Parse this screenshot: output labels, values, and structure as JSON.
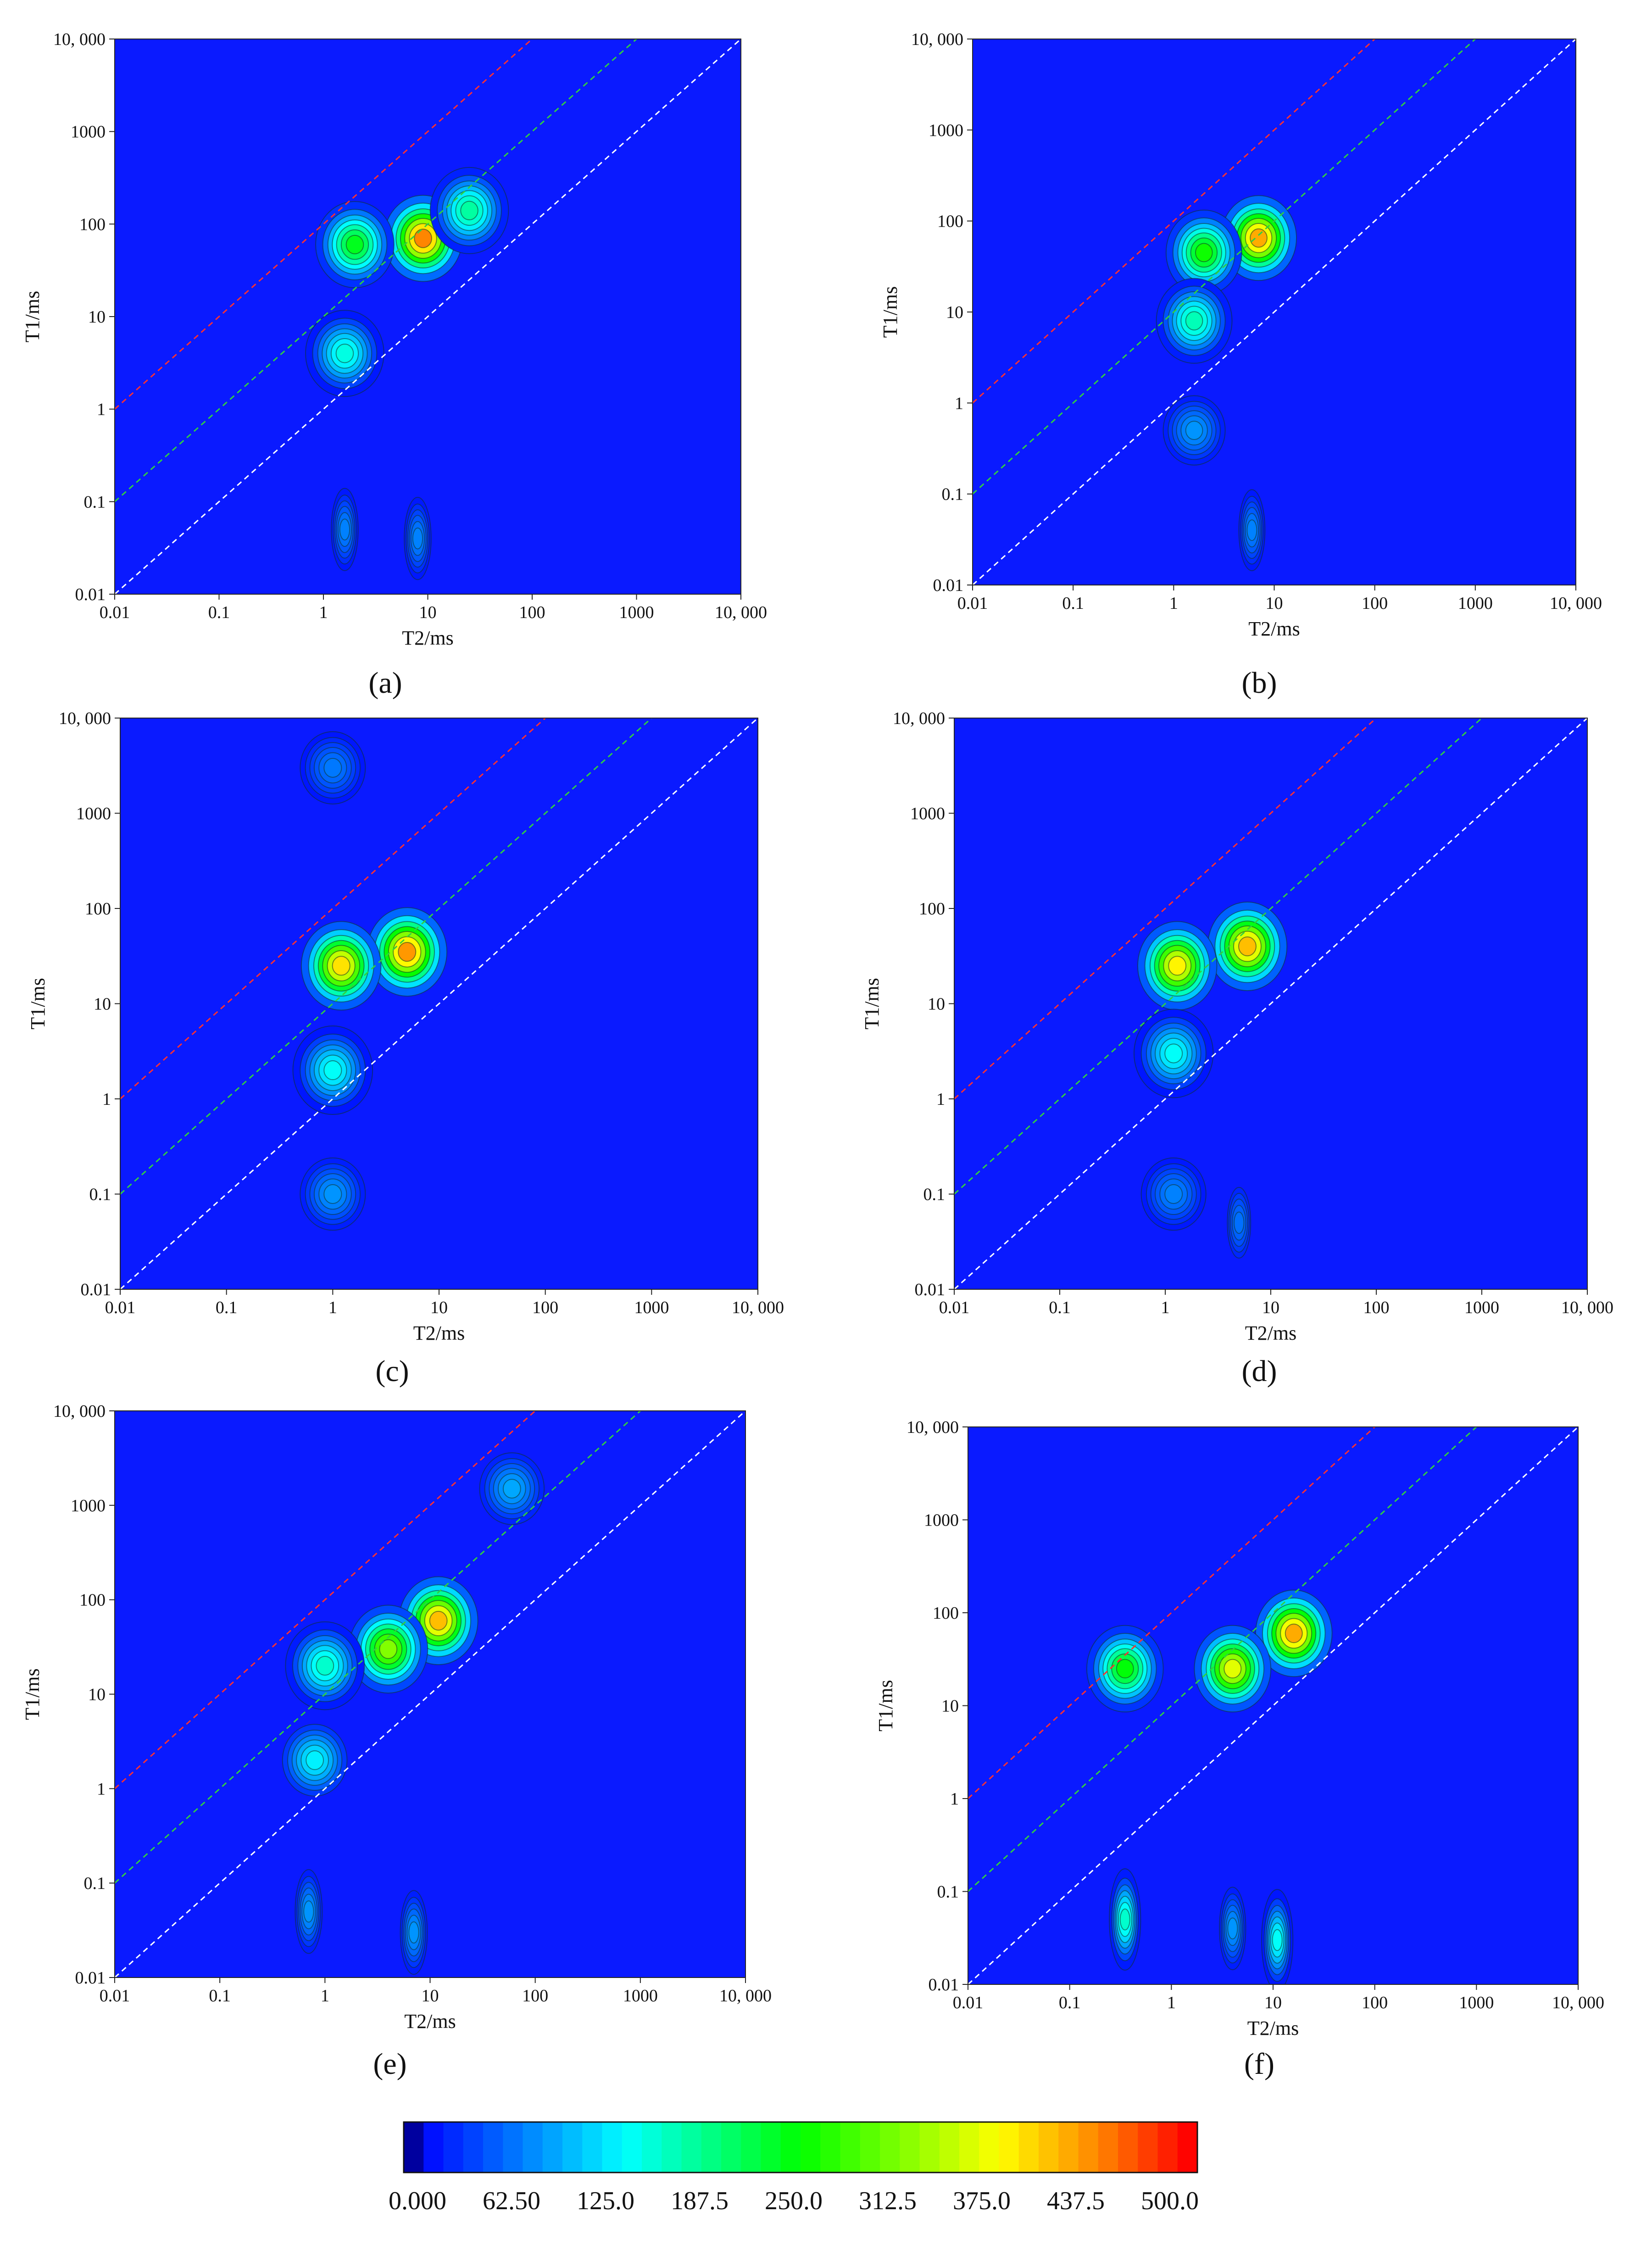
{
  "chart_data": [
    {
      "type": "heatmap",
      "panel_label": "(a)",
      "xlabel": "T2/ms",
      "ylabel": "T1/ms",
      "xscale": "log",
      "yscale": "log",
      "xlim": [
        0.01,
        10000
      ],
      "ylim": [
        0.01,
        10000
      ],
      "x_ticks": [
        "0.01",
        "0.1",
        "1",
        "10",
        "100",
        "1000",
        "10, 000"
      ],
      "y_ticks": [
        "0.01",
        "0.1",
        "1",
        "10",
        "100",
        "1000",
        "10, 000"
      ],
      "reference_lines": [
        {
          "t1_t2_ratio": 100,
          "color": "#ff3030"
        },
        {
          "t1_t2_ratio": 10,
          "color": "#30d040"
        },
        {
          "t1_t2_ratio": 1,
          "color": "#ffffff"
        }
      ],
      "peaks": [
        {
          "t2": 9,
          "t1": 70,
          "amplitude": 460
        },
        {
          "t2": 2,
          "t1": 60,
          "amplitude": 250
        },
        {
          "t2": 1.6,
          "t1": 4,
          "amplitude": 160
        },
        {
          "t2": 25,
          "t1": 140,
          "amplitude": 190
        },
        {
          "t2": 1.6,
          "t1": 0.05,
          "amplitude": 80
        },
        {
          "t2": 8,
          "t1": 0.04,
          "amplitude": 80
        }
      ]
    },
    {
      "type": "heatmap",
      "panel_label": "(b)",
      "xlabel": "T2/ms",
      "ylabel": "T1/ms",
      "xscale": "log",
      "yscale": "log",
      "xlim": [
        0.01,
        10000
      ],
      "ylim": [
        0.01,
        10000
      ],
      "x_ticks": [
        "0.01",
        "0.1",
        "1",
        "10",
        "100",
        "1000",
        "10, 000"
      ],
      "y_ticks": [
        "0.01",
        "0.1",
        "1",
        "10",
        "100",
        "1000",
        "10, 000"
      ],
      "reference_lines": [
        {
          "t1_t2_ratio": 100,
          "color": "#ff3030"
        },
        {
          "t1_t2_ratio": 10,
          "color": "#30d040"
        },
        {
          "t1_t2_ratio": 1,
          "color": "#ffffff"
        }
      ],
      "peaks": [
        {
          "t2": 7,
          "t1": 65,
          "amplitude": 440
        },
        {
          "t2": 2,
          "t1": 45,
          "amplitude": 270
        },
        {
          "t2": 1.6,
          "t1": 8,
          "amplitude": 180
        },
        {
          "t2": 1.6,
          "t1": 0.5,
          "amplitude": 90
        },
        {
          "t2": 6,
          "t1": 0.04,
          "amplitude": 80
        }
      ]
    },
    {
      "type": "heatmap",
      "panel_label": "(c)",
      "xlabel": "T2/ms",
      "ylabel": "T1/ms",
      "xscale": "log",
      "yscale": "log",
      "xlim": [
        0.01,
        10000
      ],
      "ylim": [
        0.01,
        10000
      ],
      "x_ticks": [
        "0.01",
        "0.1",
        "1",
        "10",
        "100",
        "1000",
        "10, 000"
      ],
      "y_ticks": [
        "0.01",
        "0.1",
        "1",
        "10",
        "100",
        "1000",
        "10, 000"
      ],
      "reference_lines": [
        {
          "t1_t2_ratio": 100,
          "color": "#ff3030"
        },
        {
          "t1_t2_ratio": 10,
          "color": "#30d040"
        },
        {
          "t1_t2_ratio": 1,
          "color": "#ffffff"
        }
      ],
      "peaks": [
        {
          "t2": 5,
          "t1": 35,
          "amplitude": 450
        },
        {
          "t2": 1.2,
          "t1": 25,
          "amplitude": 410
        },
        {
          "t2": 1,
          "t1": 2,
          "amplitude": 150
        },
        {
          "t2": 1,
          "t1": 0.1,
          "amplitude": 90
        },
        {
          "t2": 1,
          "t1": 3000,
          "amplitude": 75
        }
      ]
    },
    {
      "type": "heatmap",
      "panel_label": "(d)",
      "xlabel": "T2/ms",
      "ylabel": "T1/ms",
      "xscale": "log",
      "yscale": "log",
      "xlim": [
        0.01,
        10000
      ],
      "ylim": [
        0.01,
        10000
      ],
      "x_ticks": [
        "0.01",
        "0.1",
        "1",
        "10",
        "100",
        "1000",
        "10, 000"
      ],
      "y_ticks": [
        "0.01",
        "0.1",
        "1",
        "10",
        "100",
        "1000",
        "10, 000"
      ],
      "reference_lines": [
        {
          "t1_t2_ratio": 100,
          "color": "#ff3030"
        },
        {
          "t1_t2_ratio": 10,
          "color": "#30d040"
        },
        {
          "t1_t2_ratio": 1,
          "color": "#ffffff"
        }
      ],
      "peaks": [
        {
          "t2": 6,
          "t1": 40,
          "amplitude": 430
        },
        {
          "t2": 1.3,
          "t1": 25,
          "amplitude": 400
        },
        {
          "t2": 1.2,
          "t1": 3,
          "amplitude": 150
        },
        {
          "t2": 1.2,
          "t1": 0.1,
          "amplitude": 80
        },
        {
          "t2": 5,
          "t1": 0.05,
          "amplitude": 70
        }
      ]
    },
    {
      "type": "heatmap",
      "panel_label": "(e)",
      "xlabel": "T2/ms",
      "ylabel": "T1/ms",
      "xscale": "log",
      "yscale": "log",
      "xlim": [
        0.01,
        10000
      ],
      "ylim": [
        0.01,
        10000
      ],
      "x_ticks": [
        "0.01",
        "0.1",
        "1",
        "10",
        "100",
        "1000",
        "10, 000"
      ],
      "y_ticks": [
        "0.01",
        "0.1",
        "1",
        "10",
        "100",
        "1000",
        "10, 000"
      ],
      "reference_lines": [
        {
          "t1_t2_ratio": 100,
          "color": "#ff3030"
        },
        {
          "t1_t2_ratio": 10,
          "color": "#30d040"
        },
        {
          "t1_t2_ratio": 1,
          "color": "#ffffff"
        }
      ],
      "peaks": [
        {
          "t2": 12,
          "t1": 60,
          "amplitude": 430
        },
        {
          "t2": 4,
          "t1": 30,
          "amplitude": 330
        },
        {
          "t2": 1,
          "t1": 20,
          "amplitude": 170
        },
        {
          "t2": 0.8,
          "t1": 2,
          "amplitude": 140
        },
        {
          "t2": 0.7,
          "t1": 0.05,
          "amplitude": 90
        },
        {
          "t2": 7,
          "t1": 0.03,
          "amplitude": 90
        },
        {
          "t2": 60,
          "t1": 1500,
          "amplitude": 100
        }
      ]
    },
    {
      "type": "heatmap",
      "panel_label": "(f)",
      "xlabel": "T2/ms",
      "ylabel": "T1/ms",
      "xscale": "log",
      "yscale": "log",
      "xlim": [
        0.01,
        10000
      ],
      "ylim": [
        0.01,
        10000
      ],
      "x_ticks": [
        "0.01",
        "0.1",
        "1",
        "10",
        "100",
        "1000",
        "10, 000"
      ],
      "y_ticks": [
        "0.01",
        "0.1",
        "1",
        "10",
        "100",
        "1000",
        "10, 000"
      ],
      "reference_lines": [
        {
          "t1_t2_ratio": 100,
          "color": "#ff3030"
        },
        {
          "t1_t2_ratio": 10,
          "color": "#30d040"
        },
        {
          "t1_t2_ratio": 1,
          "color": "#ffffff"
        }
      ],
      "peaks": [
        {
          "t2": 16,
          "t1": 60,
          "amplitude": 440
        },
        {
          "t2": 4,
          "t1": 25,
          "amplitude": 380
        },
        {
          "t2": 0.35,
          "t1": 25,
          "amplitude": 260
        },
        {
          "t2": 0.35,
          "t1": 0.05,
          "amplitude": 170
        },
        {
          "t2": 11,
          "t1": 0.03,
          "amplitude": 150
        },
        {
          "t2": 4,
          "t1": 0.04,
          "amplitude": 90
        }
      ]
    }
  ],
  "colorbar": {
    "min": 0,
    "max": 500,
    "tick_labels": [
      "0.000",
      "62.50",
      "125.0",
      "187.5",
      "250.0",
      "312.5",
      "375.0",
      "437.5",
      "500.0"
    ],
    "stops": [
      {
        "value": 0,
        "color": "#000000"
      },
      {
        "value": 10,
        "color": "#0000ff"
      },
      {
        "value": 140,
        "color": "#00ffff"
      },
      {
        "value": 250,
        "color": "#00ff00"
      },
      {
        "value": 375,
        "color": "#ffff00"
      },
      {
        "value": 440,
        "color": "#ff8000"
      },
      {
        "value": 495,
        "color": "#ff0000"
      },
      {
        "value": 500,
        "color": "#ffffff"
      }
    ]
  }
}
